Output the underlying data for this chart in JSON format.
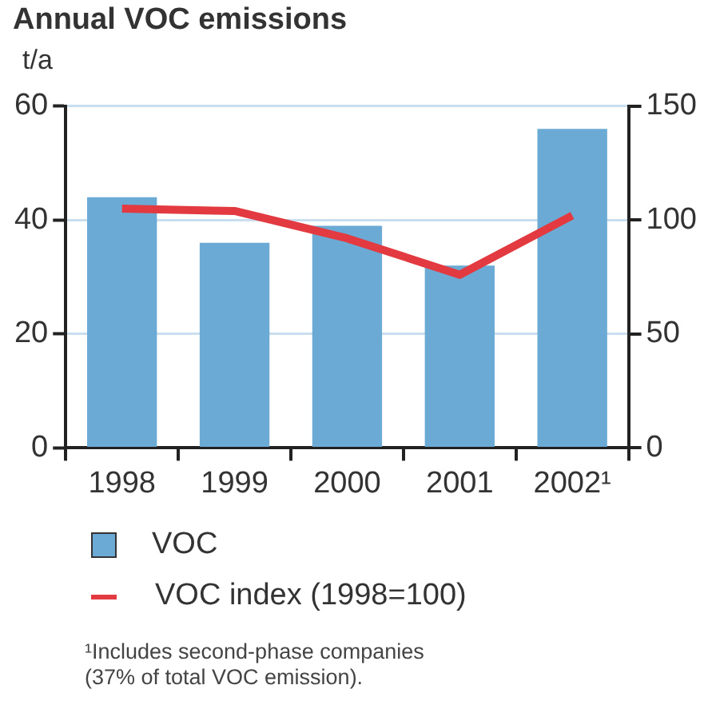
{
  "chart_data": {
    "type": "bar",
    "title": "Annual VOC emissions",
    "ylabel": "t/a",
    "categories": [
      "1998",
      "1999",
      "2000",
      "2001",
      "2002¹"
    ],
    "series": [
      {
        "name": "VOC",
        "color": "#6aaad4",
        "values": [
          44,
          36,
          39,
          32,
          56
        ]
      },
      {
        "name": "VOC index (1998=100)",
        "type": "line",
        "color": "#e23a40",
        "axis": "y2",
        "values": [
          105,
          104,
          92,
          76,
          102
        ]
      }
    ],
    "ylim": [
      0,
      60
    ],
    "yticks": [
      0,
      20,
      40,
      60
    ],
    "y2lim": [
      0,
      150
    ],
    "y2ticks": [
      0,
      50,
      100,
      150
    ],
    "grid": "y",
    "legend": "bottom",
    "marker": "none",
    "annotations": [
      "¹Includes second-phase companies\n(37% of total VOC emission)."
    ]
  }
}
